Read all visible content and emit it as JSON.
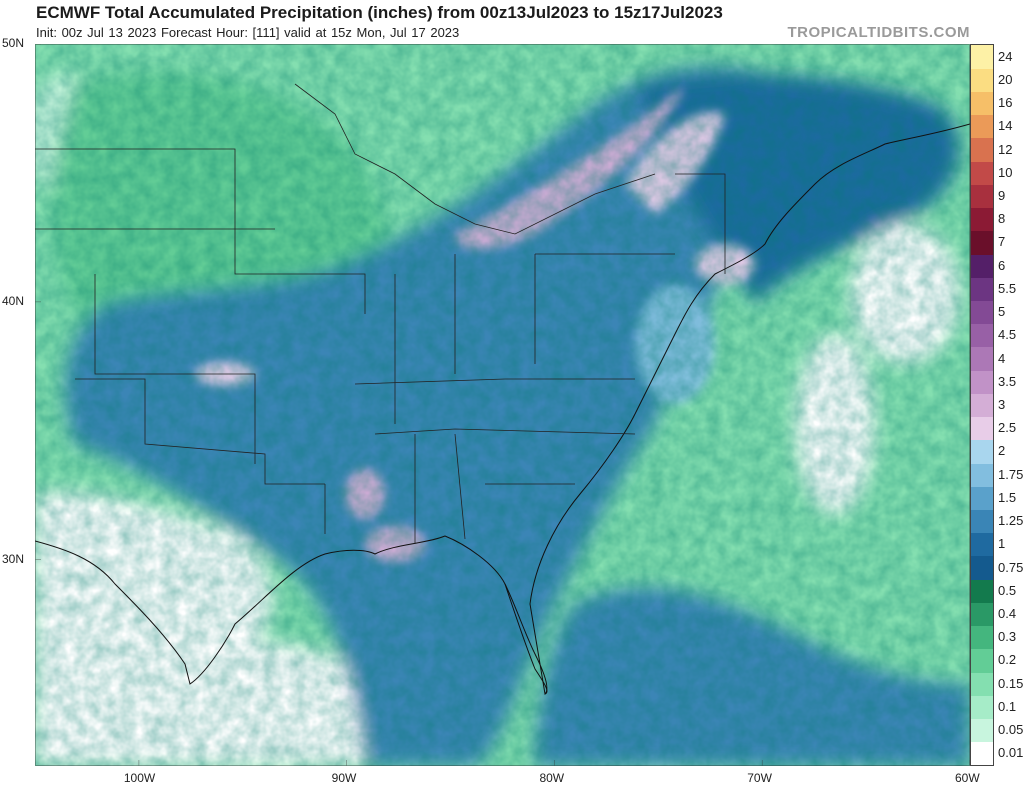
{
  "header": {
    "title": "ECMWF Total Accumulated Precipitation (inches) from 00z13Jul2023 to 15z17Jul2023",
    "subtitle": "Init: 00z Jul 13 2023   Forecast Hour: [111]   valid at 15z Mon, Jul 17 2023",
    "source": "TROPICALTIDBITS.COM"
  },
  "axes": {
    "lat_labels": [
      {
        "lat": 50,
        "label": "50N"
      },
      {
        "lat": 40,
        "label": "40N"
      },
      {
        "lat": 30,
        "label": "30N"
      }
    ],
    "lon_labels": [
      {
        "lon": -100,
        "label": "100W"
      },
      {
        "lon": -90,
        "label": "90W"
      },
      {
        "lon": -80,
        "label": "80W"
      },
      {
        "lon": -70,
        "label": "70W"
      },
      {
        "lon": -60,
        "label": "60W"
      }
    ]
  },
  "legend": [
    {
      "value": "0.01",
      "color": "#ffffff"
    },
    {
      "value": "0.05",
      "color": "#c8f5de"
    },
    {
      "value": "0.1",
      "color": "#a6ecc8"
    },
    {
      "value": "0.15",
      "color": "#84dfb0"
    },
    {
      "value": "0.2",
      "color": "#62cd96"
    },
    {
      "value": "0.3",
      "color": "#44b67e"
    },
    {
      "value": "0.4",
      "color": "#2a9966"
    },
    {
      "value": "0.5",
      "color": "#137a4d"
    },
    {
      "value": "0.75",
      "color": "#145a8e"
    },
    {
      "value": "1",
      "color": "#1f6aa0"
    },
    {
      "value": "1.25",
      "color": "#3a85b6"
    },
    {
      "value": "1.5",
      "color": "#5aa1cb"
    },
    {
      "value": "1.75",
      "color": "#82bedf"
    },
    {
      "value": "2",
      "color": "#a9d6ee"
    },
    {
      "value": "2.5",
      "color": "#e8cde8"
    },
    {
      "value": "3",
      "color": "#d4aed6"
    },
    {
      "value": "3.5",
      "color": "#c192c7"
    },
    {
      "value": "4",
      "color": "#ac78b6"
    },
    {
      "value": "4.5",
      "color": "#9860a6"
    },
    {
      "value": "5",
      "color": "#834a95"
    },
    {
      "value": "5.5",
      "color": "#6c3582"
    },
    {
      "value": "6",
      "color": "#541f68"
    },
    {
      "value": "7",
      "color": "#6a0f2a"
    },
    {
      "value": "8",
      "color": "#8b1a34"
    },
    {
      "value": "9",
      "color": "#a8303e"
    },
    {
      "value": "10",
      "color": "#c24a48"
    },
    {
      "value": "12",
      "color": "#d9724f"
    },
    {
      "value": "14",
      "color": "#eb9a58"
    },
    {
      "value": "16",
      "color": "#f6bf68"
    },
    {
      "value": "20",
      "color": "#fbdd82"
    },
    {
      "value": "24",
      "color": "#fdf1a6"
    }
  ],
  "map": {
    "lon_range": [
      -105,
      -60
    ],
    "lat_range": [
      22,
      50
    ]
  }
}
